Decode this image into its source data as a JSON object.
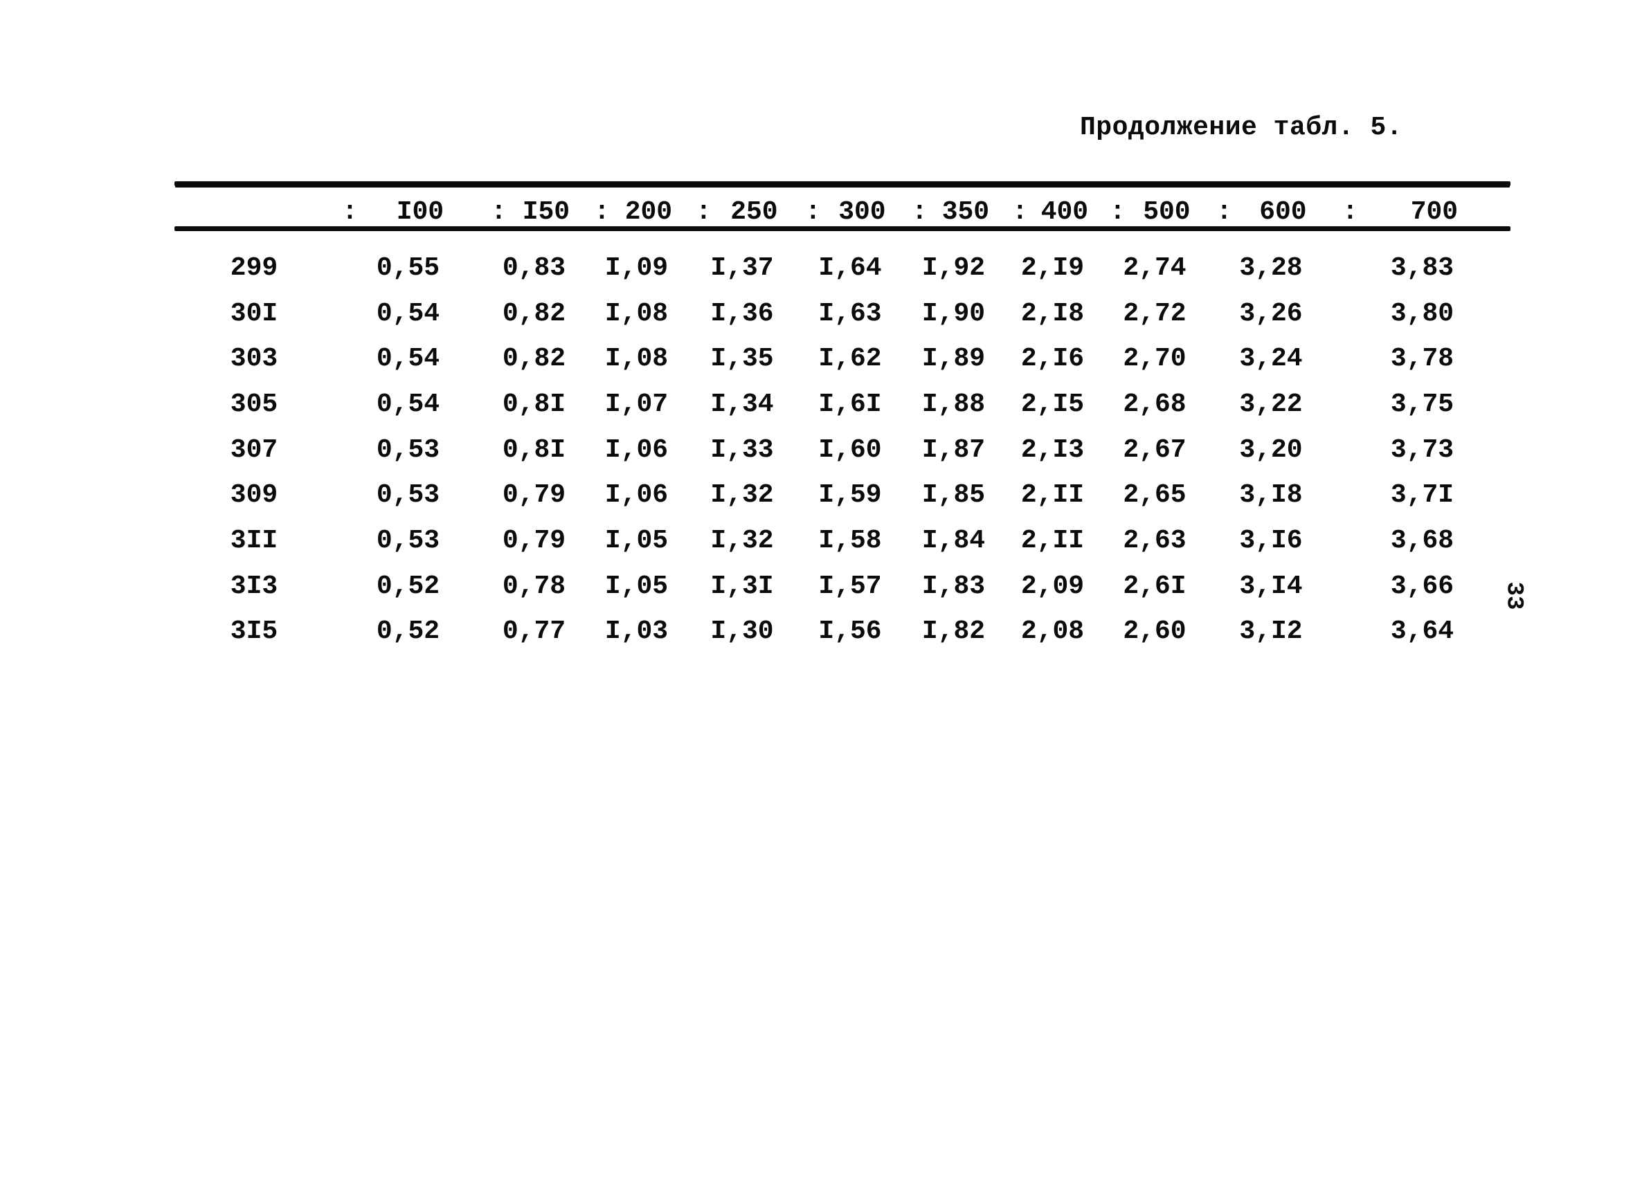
{
  "page": {
    "title": "Продолжение табл. 5.",
    "page_number": "33"
  },
  "table": {
    "header": {
      "separator": ":",
      "columns": [
        "I00",
        "I50",
        "200",
        "250",
        "300",
        "350",
        "400",
        "500",
        "600",
        "700"
      ]
    },
    "rows": [
      {
        "label": "299",
        "values": [
          "0,55",
          "0,83",
          "I,09",
          "I,37",
          "I,64",
          "I,92",
          "2,I9",
          "2,74",
          "3,28",
          "3,83"
        ]
      },
      {
        "label": "30I",
        "values": [
          "0,54",
          "0,82",
          "I,08",
          "I,36",
          "I,63",
          "I,90",
          "2,I8",
          "2,72",
          "3,26",
          "3,80"
        ]
      },
      {
        "label": "303",
        "values": [
          "0,54",
          "0,82",
          "I,08",
          "I,35",
          "I,62",
          "I,89",
          "2,I6",
          "2,70",
          "3,24",
          "3,78"
        ]
      },
      {
        "label": "305",
        "values": [
          "0,54",
          "0,8I",
          "I,07",
          "I,34",
          "I,6I",
          "I,88",
          "2,I5",
          "2,68",
          "3,22",
          "3,75"
        ]
      },
      {
        "label": "307",
        "values": [
          "0,53",
          "0,8I",
          "I,06",
          "I,33",
          "I,60",
          "I,87",
          "2,I3",
          "2,67",
          "3,20",
          "3,73"
        ]
      },
      {
        "label": "309",
        "values": [
          "0,53",
          "0,79",
          "I,06",
          "I,32",
          "I,59",
          "I,85",
          "2,II",
          "2,65",
          "3,I8",
          "3,7I"
        ]
      },
      {
        "label": "3II",
        "values": [
          "0,53",
          "0,79",
          "I,05",
          "I,32",
          "I,58",
          "I,84",
          "2,II",
          "2,63",
          "3,I6",
          "3,68"
        ]
      },
      {
        "label": "3I3",
        "values": [
          "0,52",
          "0,78",
          "I,05",
          "I,3I",
          "I,57",
          "I,83",
          "2,09",
          "2,6I",
          "3,I4",
          "3,66"
        ]
      },
      {
        "label": "3I5",
        "values": [
          "0,52",
          "0,77",
          "I,03",
          "I,30",
          "I,56",
          "I,82",
          "2,08",
          "2,60",
          "3,I2",
          "3,64"
        ]
      }
    ]
  }
}
